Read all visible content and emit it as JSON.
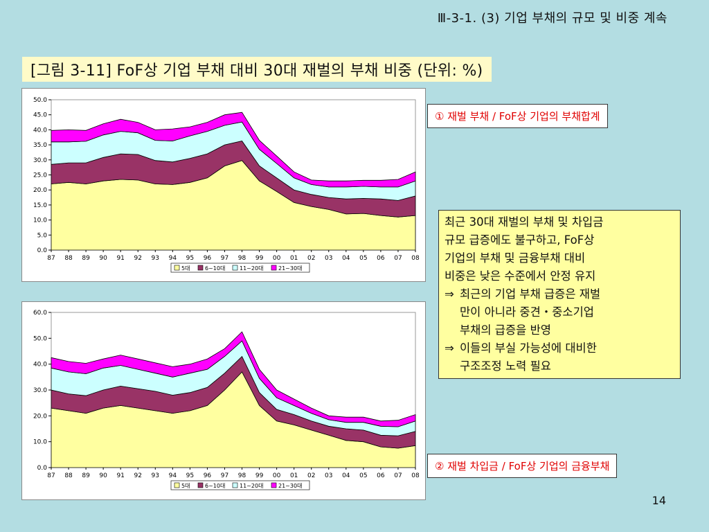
{
  "header": {
    "text": "Ⅲ-3-1. (3) 기업 부채의 규모 및 비중 계속"
  },
  "figure_title": "[그림 3-11] FoF상 기업 부채 대비 30대 재벌의 부채 비중 (단위: %)",
  "notes": {
    "note1": "① 재벌 부채 / FoF상 기업의 부채합계",
    "note2": "② 재벌 차입금 / FoF상 기업의 금융부채"
  },
  "summary": {
    "lines": [
      "최근 30대 재벌의 부채 및 차입금",
      "규모 급증에도 불구하고, FoF상",
      "기업의 부채 및 금융부채 대비",
      "비중은 낮은 수준에서 안정 유지"
    ],
    "bullets": [
      {
        "arrow": "⇒",
        "lines": [
          "최근의 기업 부채 급증은 재벌",
          "만이 아니라 중견・중소기업",
          "부채의 급증을 반영"
        ]
      },
      {
        "arrow": "⇒",
        "lines": [
          "이들의 부실 가능성에 대비한",
          "구조조정 노력 필요"
        ]
      }
    ]
  },
  "page_number": "14",
  "colors": {
    "background": "#b3dde2",
    "series": [
      "#ffffa0",
      "#993366",
      "#ccffff",
      "#ff00ff"
    ]
  },
  "chart_data": [
    {
      "type": "area",
      "stacked": true,
      "x": [
        "87",
        "88",
        "89",
        "90",
        "91",
        "92",
        "93",
        "94",
        "95",
        "96",
        "97",
        "98",
        "99",
        "00",
        "01",
        "02",
        "03",
        "04",
        "05",
        "06",
        "07",
        "08"
      ],
      "y_ticks": [
        "0.0",
        "5.0",
        "10.0",
        "15.0",
        "20.0",
        "25.0",
        "30.0",
        "35.0",
        "40.0",
        "45.0",
        "50.0"
      ],
      "ylim": [
        0,
        50
      ],
      "legend_position": "bottom",
      "series": [
        {
          "name": "5대",
          "values": [
            22.0,
            22.5,
            22.0,
            23.0,
            23.5,
            23.3,
            22.0,
            21.8,
            22.5,
            24.0,
            28.0,
            29.8,
            23.0,
            19.5,
            15.8,
            14.5,
            13.5,
            12.0,
            12.2,
            11.5,
            11.0,
            11.5
          ]
        },
        {
          "name": "6~10대",
          "values": [
            6.5,
            6.5,
            7.0,
            7.8,
            8.5,
            8.5,
            7.8,
            7.5,
            8.0,
            8.0,
            7.0,
            6.5,
            5.0,
            4.5,
            4.2,
            4.0,
            4.0,
            5.0,
            5.0,
            5.5,
            5.5,
            6.5
          ]
        },
        {
          "name": "11~20대",
          "values": [
            7.5,
            7.0,
            7.2,
            7.5,
            7.5,
            7.2,
            6.7,
            7.0,
            7.5,
            7.5,
            6.5,
            6.3,
            5.5,
            4.8,
            4.0,
            3.3,
            3.5,
            4.0,
            4.0,
            4.0,
            4.5,
            5.0
          ]
        },
        {
          "name": "21~30대",
          "values": [
            3.8,
            4.0,
            3.6,
            3.7,
            4.0,
            3.5,
            3.5,
            4.0,
            3.0,
            3.0,
            3.5,
            3.2,
            3.0,
            2.5,
            2.0,
            1.5,
            2.0,
            2.0,
            2.0,
            2.2,
            2.5,
            3.0
          ]
        }
      ]
    },
    {
      "type": "area",
      "stacked": true,
      "x": [
        "87",
        "88",
        "89",
        "90",
        "91",
        "92",
        "93",
        "94",
        "95",
        "96",
        "97",
        "98",
        "99",
        "00",
        "01",
        "02",
        "03",
        "04",
        "05",
        "06",
        "07",
        "08"
      ],
      "y_ticks": [
        "0.0",
        "10.0",
        "20.0",
        "30.0",
        "40.0",
        "50.0",
        "60.0"
      ],
      "ylim": [
        0,
        60
      ],
      "legend_position": "bottom",
      "series": [
        {
          "name": "5대",
          "values": [
            23.0,
            22.0,
            21.0,
            23.0,
            24.0,
            23.0,
            22.0,
            21.0,
            22.0,
            24.0,
            30.0,
            37.0,
            24.0,
            18.0,
            16.5,
            14.5,
            12.5,
            10.5,
            10.0,
            8.0,
            7.5,
            8.5
          ]
        },
        {
          "name": "6~10대",
          "values": [
            7.0,
            6.5,
            6.8,
            7.0,
            7.5,
            7.5,
            7.5,
            7.0,
            7.0,
            7.0,
            6.5,
            6.0,
            5.0,
            4.5,
            4.0,
            3.5,
            3.5,
            4.5,
            4.5,
            4.5,
            4.8,
            5.5
          ]
        },
        {
          "name": "11~20대",
          "values": [
            8.5,
            8.5,
            8.5,
            8.5,
            8.0,
            7.5,
            7.0,
            7.0,
            7.5,
            7.0,
            6.5,
            6.0,
            5.5,
            4.5,
            3.5,
            3.0,
            2.5,
            2.5,
            3.0,
            3.5,
            3.5,
            4.0
          ]
        },
        {
          "name": "21~30대",
          "values": [
            4.0,
            4.0,
            4.0,
            3.5,
            4.0,
            4.0,
            4.0,
            4.0,
            3.5,
            4.0,
            3.0,
            3.5,
            3.5,
            3.0,
            2.5,
            2.0,
            1.5,
            2.0,
            2.0,
            2.0,
            2.5,
            2.5
          ]
        }
      ]
    }
  ]
}
